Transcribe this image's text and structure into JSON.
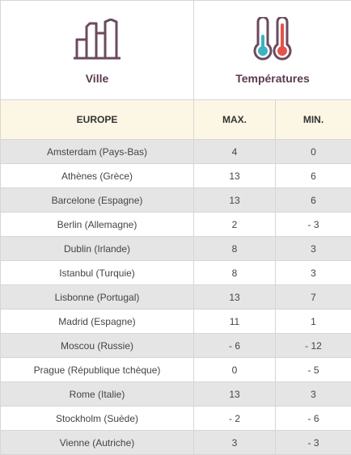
{
  "header": {
    "city_label": "Ville",
    "temp_label": "Températures",
    "city_icon": "buildings-icon",
    "temp_icon": "thermometers-icon"
  },
  "columns": {
    "region": "EUROPE",
    "max": "MAX.",
    "min": "MIN."
  },
  "rows": [
    {
      "city": "Amsterdam (Pays-Bas)",
      "max": "4",
      "min": "0"
    },
    {
      "city": "Athènes (Grèce)",
      "max": "13",
      "min": "6"
    },
    {
      "city": "Barcelone (Espagne)",
      "max": "13",
      "min": "6"
    },
    {
      "city": "Berlin (Allemagne)",
      "max": "2",
      "min": "- 3"
    },
    {
      "city": "Dublin (Irlande)",
      "max": "8",
      "min": "3"
    },
    {
      "city": "Istanbul (Turquie)",
      "max": "8",
      "min": "3"
    },
    {
      "city": "Lisbonne (Portugal)",
      "max": "13",
      "min": "7"
    },
    {
      "city": "Madrid (Espagne)",
      "max": "11",
      "min": "1"
    },
    {
      "city": "Moscou (Russie)",
      "max": "- 6",
      "min": "- 12"
    },
    {
      "city": "Prague (République tchèque)",
      "max": "0",
      "min": "- 5"
    },
    {
      "city": "Rome (Italie)",
      "max": "13",
      "min": "3"
    },
    {
      "city": "Stockholm (Suède)",
      "max": "- 2",
      "min": "- 6"
    },
    {
      "city": "Vienne (Autriche)",
      "max": "3",
      "min": "- 3"
    }
  ],
  "colors": {
    "icon_stroke": "#6b4a5e",
    "thermo_cold": "#3bb3c3",
    "thermo_hot": "#e5534b",
    "header_bg": "#fcf7e4",
    "odd_row_bg": "#e5e5e5"
  }
}
